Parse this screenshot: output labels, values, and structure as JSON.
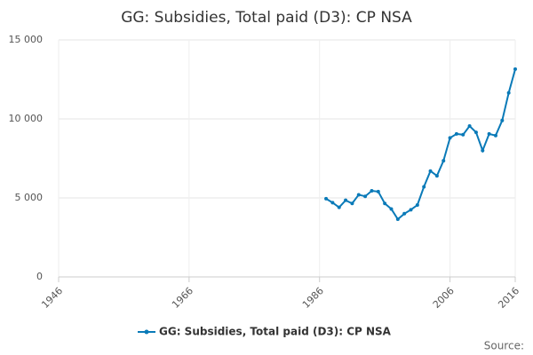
{
  "chart_data": {
    "type": "line",
    "title": "GG: Subsidies, Total paid (D3): CP NSA",
    "source": "Source:",
    "x": [
      1987,
      1988,
      1989,
      1990,
      1991,
      1992,
      1993,
      1994,
      1995,
      1996,
      1997,
      1998,
      1999,
      2000,
      2001,
      2002,
      2003,
      2004,
      2005,
      2006,
      2007,
      2008,
      2009,
      2010,
      2011,
      2012,
      2013,
      2014,
      2015,
      2016
    ],
    "series": [
      {
        "name": "GG: Subsidies, Total paid (D3): CP NSA",
        "color": "#0a7ab8",
        "values": [
          4950,
          4700,
          4400,
          4850,
          4650,
          5200,
          5100,
          5450,
          5400,
          4650,
          4300,
          3650,
          4000,
          4250,
          4550,
          5700,
          6700,
          6400,
          7350,
          8800,
          9050,
          9000,
          9550,
          9150,
          8000,
          9050,
          8950,
          9900,
          11650,
          13150
        ]
      }
    ],
    "xlim": [
      1946,
      2016
    ],
    "xticks": [
      1946,
      1966,
      1986,
      2006,
      2016
    ],
    "ylim": [
      0,
      15000
    ],
    "yticks": [
      0,
      {
        "value": 5000,
        "label": "5 000"
      },
      {
        "value": 10000,
        "label": "10 000"
      },
      {
        "value": 15000,
        "label": "15 000"
      }
    ],
    "grid": true
  }
}
